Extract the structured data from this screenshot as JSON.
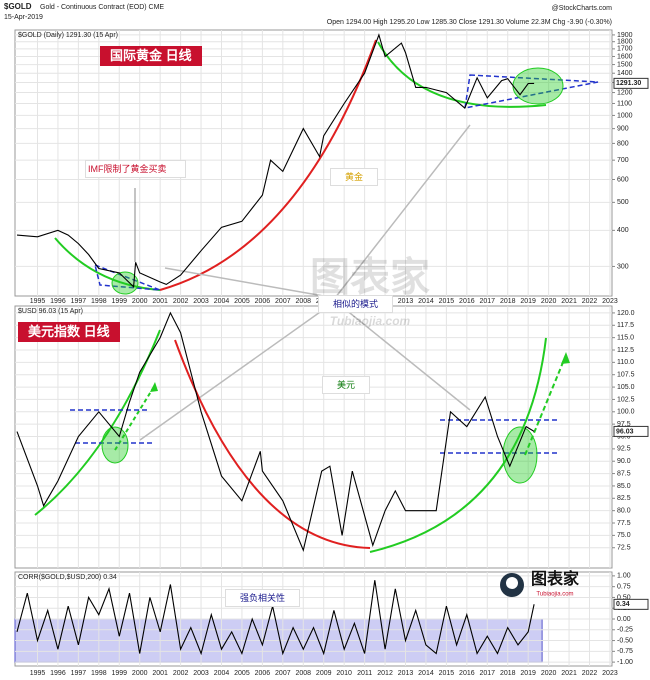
{
  "header": {
    "symbol": "$GOLD",
    "name": "Gold - Continuous Contract (EOD) CME",
    "date": "15-Apr-2019",
    "source": "@StockCharts.com",
    "quote": "Open 1294.00   High 1295.20   Low 1285.30   Close 1291.30   Volume 22.3M   Chg -3.90 (-0.30%)"
  },
  "watermark": {
    "main": "图表家",
    "sub": "Tubiaojia.com"
  },
  "logo": {
    "main": "图表家",
    "sub": "Tubiaojia.com"
  },
  "chart_data": [
    {
      "type": "line",
      "legend": "$GOLD (Daily) 1291.30 (15 Apr)",
      "last_label": "1291.30",
      "log_scale": true,
      "grid": true,
      "color": "#000000",
      "x": [
        1994,
        1995,
        1996,
        1996.5,
        1997,
        1997.5,
        1998,
        1999,
        1999.7,
        1999.8,
        2000,
        2001,
        2001.3,
        2002,
        2003,
        2004,
        2005,
        2006,
        2006.4,
        2007,
        2008,
        2008.8,
        2009,
        2010,
        2011,
        2011.7,
        2012,
        2012.8,
        2013,
        2013.5,
        2014,
        2015,
        2015.9,
        2016.5,
        2017,
        2017.7,
        2018,
        2018.6,
        2019,
        2019.29
      ],
      "values": [
        385,
        380,
        400,
        385,
        360,
        330,
        295,
        285,
        255,
        310,
        285,
        265,
        260,
        280,
        340,
        410,
        430,
        530,
        700,
        640,
        900,
        720,
        850,
        1100,
        1400,
        1900,
        1600,
        1780,
        1650,
        1250,
        1250,
        1200,
        1060,
        1350,
        1150,
        1320,
        1340,
        1180,
        1290,
        1291.3
      ],
      "xlim": [
        1993.9,
        2023.1
      ],
      "ylim": [
        237,
        1976
      ],
      "yticks": [
        1900,
        1800,
        1700,
        1600,
        1500,
        1400,
        1300,
        1200,
        1100,
        1000,
        900,
        800,
        700,
        600,
        500,
        400,
        300
      ],
      "xticks": [
        1995,
        1996,
        1997,
        1998,
        1999,
        2000,
        2001,
        2002,
        2003,
        2004,
        2005,
        2006,
        2007,
        2008,
        2009,
        2010,
        2011,
        2012,
        2013,
        2014,
        2015,
        2016,
        2017,
        2018,
        2019,
        2020,
        2021,
        2022,
        2023
      ],
      "annotations": [
        "国际黄金 日线",
        "IMF限制了黄金买卖",
        "黄金",
        "相似的模式"
      ]
    },
    {
      "type": "line",
      "legend": "$USD 96.03 (15 Apr)",
      "last_label": "96.03",
      "grid": true,
      "color": "#000000",
      "x": [
        1994,
        1995,
        1995.3,
        1996,
        1997,
        1998,
        1999,
        1999.5,
        2000,
        2001,
        2001.5,
        2002,
        2003,
        2004,
        2005,
        2005.9,
        2006,
        2007,
        2008,
        2008.9,
        2009.3,
        2009.9,
        2010.4,
        2011.4,
        2012,
        2012.5,
        2013,
        2014,
        2014.5,
        2015.2,
        2016,
        2016.9,
        2017.5,
        2018.1,
        2018.9,
        2019.29
      ],
      "values": [
        96,
        85,
        81,
        86,
        95,
        100,
        95,
        102,
        108,
        115,
        120,
        116,
        100,
        87,
        82,
        92,
        88,
        82,
        72,
        88,
        89,
        75,
        88,
        73,
        80,
        84,
        80,
        80,
        80,
        100,
        97,
        103,
        95,
        89,
        97,
        96.03
      ],
      "xlim": [
        1993.9,
        2023.1
      ],
      "ylim": [
        68.4,
        121.4
      ],
      "yticks": [
        {
          "value": 120,
          "label": "120.0"
        },
        {
          "value": 117.5,
          "label": "117.5"
        },
        {
          "value": 115,
          "label": "115.0"
        },
        {
          "value": 112.5,
          "label": "112.5"
        },
        {
          "value": 110,
          "label": "110.0"
        },
        {
          "value": 107.5,
          "label": "107.5"
        },
        {
          "value": 105,
          "label": "105.0"
        },
        {
          "value": 102.5,
          "label": "102.5"
        },
        {
          "value": 100,
          "label": "100.0"
        },
        {
          "value": 97.5,
          "label": "97.5"
        },
        {
          "value": 95,
          "label": "95.0"
        },
        {
          "value": 92.5,
          "label": "92.5"
        },
        {
          "value": 90,
          "label": "90.0"
        },
        {
          "value": 87.5,
          "label": "87.5"
        },
        {
          "value": 85,
          "label": "85.0"
        },
        {
          "value": 82.5,
          "label": "82.5"
        },
        {
          "value": 80,
          "label": "80.0"
        },
        {
          "value": 77.5,
          "label": "77.5"
        },
        {
          "value": 75,
          "label": "75.0"
        },
        {
          "value": 72.5,
          "label": "72.5"
        }
      ],
      "annotations": [
        "美元指数 日线",
        "美元"
      ]
    },
    {
      "type": "line",
      "legend": "CORR($GOLD,$USD,200) 0.34",
      "last_label": "0.34",
      "grid": true,
      "color": "#000000",
      "shaded_range": [
        -1,
        0
      ],
      "shade_color": "#b8b8f0",
      "x": [
        1994,
        1994.5,
        1995,
        1995.5,
        1996,
        1996.5,
        1997,
        1997.5,
        1998,
        1998.5,
        1999,
        1999.5,
        2000,
        2000.5,
        2001,
        2001.5,
        2002,
        2002.5,
        2003,
        2003.5,
        2004,
        2004.5,
        2005,
        2005.5,
        2006,
        2006.5,
        2007,
        2007.5,
        2008,
        2008.5,
        2009,
        2009.5,
        2010,
        2010.5,
        2011,
        2011.5,
        2012,
        2012.5,
        2013,
        2013.5,
        2014,
        2014.5,
        2015,
        2015.5,
        2016,
        2016.5,
        2017,
        2017.5,
        2018,
        2018.5,
        2019,
        2019.29
      ],
      "values": [
        -0.3,
        0.6,
        -0.5,
        0.2,
        -0.7,
        0.3,
        -0.6,
        0.5,
        0.1,
        0.7,
        -0.4,
        0.6,
        -0.8,
        0.5,
        -0.3,
        0.8,
        -0.7,
        -0.2,
        -0.8,
        0.1,
        -0.7,
        -0.3,
        -0.8,
        0.0,
        -0.6,
        0.3,
        -0.8,
        -0.2,
        -0.7,
        -0.2,
        -0.8,
        0.2,
        -0.7,
        -0.1,
        -0.8,
        0.9,
        -0.7,
        0.7,
        -0.5,
        0.2,
        -0.6,
        -0.8,
        0.3,
        -0.6,
        0.1,
        -0.8,
        -0.4,
        -0.8,
        -0.2,
        -0.6,
        -0.3,
        0.34
      ],
      "xlim": [
        1993.9,
        2023.1
      ],
      "ylim": [
        -1.09,
        1.09
      ],
      "yticks": [
        {
          "value": 1,
          "label": "1.00"
        },
        {
          "value": 0.75,
          "label": "0.75"
        },
        {
          "value": 0.5,
          "label": "0.50"
        },
        {
          "value": 0.25,
          "label": "0.25"
        },
        {
          "value": 0,
          "label": "0.00"
        },
        {
          "value": -0.25,
          "label": "-0.25"
        },
        {
          "value": -0.5,
          "label": "-0.50"
        },
        {
          "value": -0.75,
          "label": "-0.75"
        },
        {
          "value": -1,
          "label": "-1.00"
        }
      ],
      "xticks": [
        1995,
        1996,
        1997,
        1998,
        1999,
        2000,
        2001,
        2002,
        2003,
        2004,
        2005,
        2006,
        2007,
        2008,
        2009,
        2010,
        2011,
        2012,
        2013,
        2014,
        2015,
        2016,
        2017,
        2018,
        2019,
        2020,
        2021,
        2022,
        2023
      ],
      "annotations": [
        "强负相关性"
      ]
    }
  ]
}
